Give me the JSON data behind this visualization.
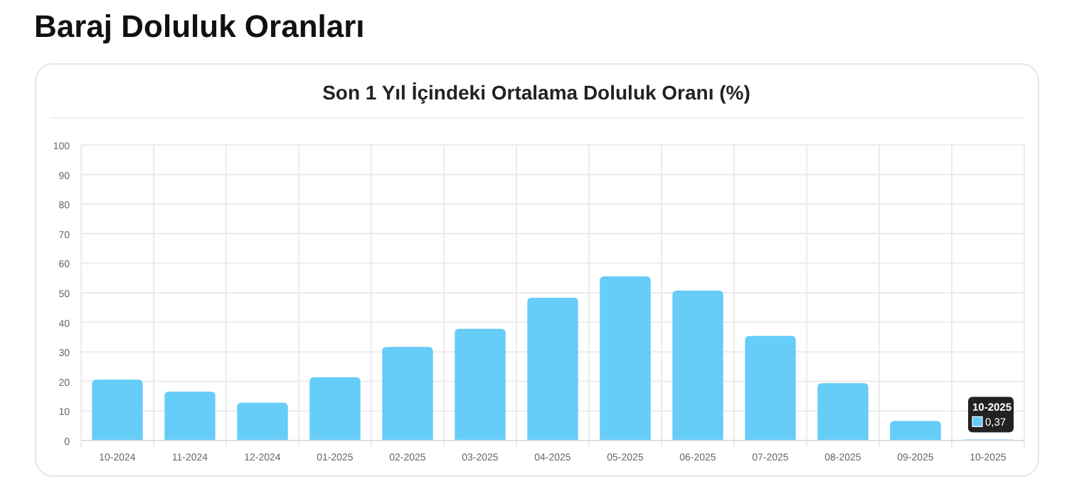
{
  "chart_data": {
    "type": "bar",
    "title": "Baraj Doluluk Oranları",
    "subtitle": "Son 1 Yıl İçindeki Ortalama Doluluk Oranı (%)",
    "categories": [
      "10-2024",
      "11-2024",
      "12-2024",
      "01-2025",
      "02-2025",
      "03-2025",
      "04-2025",
      "05-2025",
      "06-2025",
      "07-2025",
      "08-2025",
      "09-2025",
      "10-2025"
    ],
    "values": [
      20.6,
      16.5,
      12.8,
      21.4,
      31.7,
      37.8,
      48.3,
      55.5,
      50.7,
      35.4,
      19.4,
      6.6,
      0.37
    ],
    "color": "#66ccf8",
    "ylim": [
      0,
      100
    ],
    "yticks": [
      0,
      10,
      20,
      30,
      40,
      50,
      60,
      70,
      80,
      90,
      100
    ],
    "grid": true,
    "annotations": [
      {
        "text": "10-2025\n0,37",
        "x": "10-2025",
        "y": 0.37
      }
    ]
  }
}
